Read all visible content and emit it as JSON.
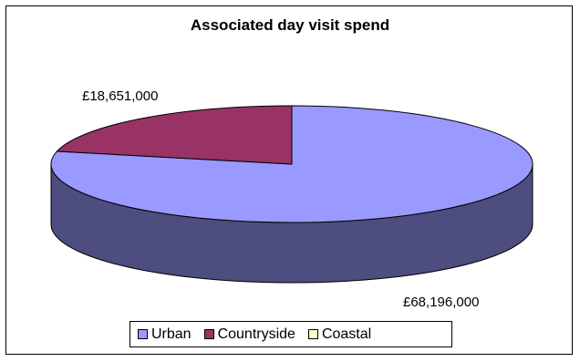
{
  "chart_data": {
    "type": "pie",
    "title": "Associated day visit spend",
    "categories": [
      "Urban",
      "Countryside",
      "Coastal"
    ],
    "values": [
      68196000,
      18651000,
      0
    ],
    "data_labels": [
      "£68,196,000",
      "£18,651,000",
      ""
    ],
    "colors": [
      "#9999ff",
      "#993366",
      "#ffffcc"
    ],
    "side_colors": [
      "#4d4d80",
      "#4d1a33",
      "#80806a"
    ],
    "legend_position": "bottom",
    "three_d": true
  }
}
